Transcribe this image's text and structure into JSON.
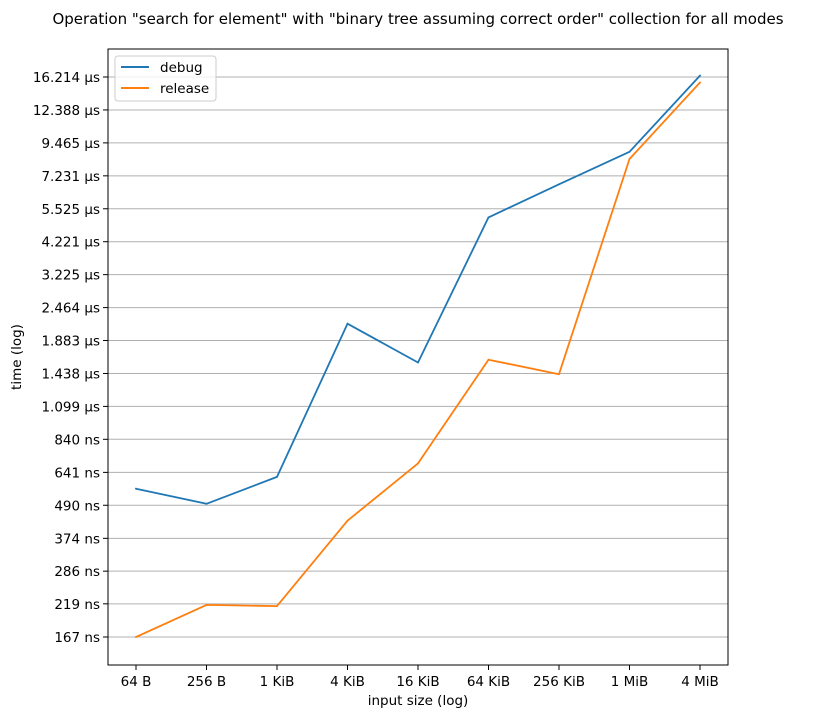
{
  "chart_data": {
    "type": "line",
    "title": "Operation \"search for element\" with \"binary tree assuming correct order\" collection for all modes",
    "xlabel": "input size (log)",
    "ylabel": "time (log)",
    "y_scale": "log",
    "grid": "horizontal",
    "legend_position": "top-left",
    "categories": [
      "64 B",
      "256 B",
      "1 KiB",
      "4 KiB",
      "16 KiB",
      "64 KiB",
      "256 KiB",
      "1 MiB",
      "4 MiB"
    ],
    "yticks": [
      {
        "label": "167 ns",
        "value": 167
      },
      {
        "label": "219 ns",
        "value": 219
      },
      {
        "label": "286 ns",
        "value": 286
      },
      {
        "label": "374 ns",
        "value": 374
      },
      {
        "label": "490 ns",
        "value": 490
      },
      {
        "label": "641 ns",
        "value": 641
      },
      {
        "label": "840 ns",
        "value": 840
      },
      {
        "label": "1.099 µs",
        "value": 1099
      },
      {
        "label": "1.438 µs",
        "value": 1438
      },
      {
        "label": "1.883 µs",
        "value": 1883
      },
      {
        "label": "2.464 µs",
        "value": 2464
      },
      {
        "label": "3.225 µs",
        "value": 3225
      },
      {
        "label": "4.221 µs",
        "value": 4221
      },
      {
        "label": "5.525 µs",
        "value": 5525
      },
      {
        "label": "7.231 µs",
        "value": 7231
      },
      {
        "label": "9.465 µs",
        "value": 9465
      },
      {
        "label": "12.388 µs",
        "value": 12388
      },
      {
        "label": "16.214 µs",
        "value": 16214
      }
    ],
    "series": [
      {
        "name": "debug",
        "color": "#1f77b4",
        "values": [
          561,
          496,
          618,
          2160,
          1573,
          5150,
          6750,
          8800,
          16400
        ]
      },
      {
        "name": "release",
        "color": "#ff7f0e",
        "values": [
          167,
          217,
          215,
          432,
          690,
          1610,
          1430,
          8300,
          15500
        ]
      }
    ]
  }
}
